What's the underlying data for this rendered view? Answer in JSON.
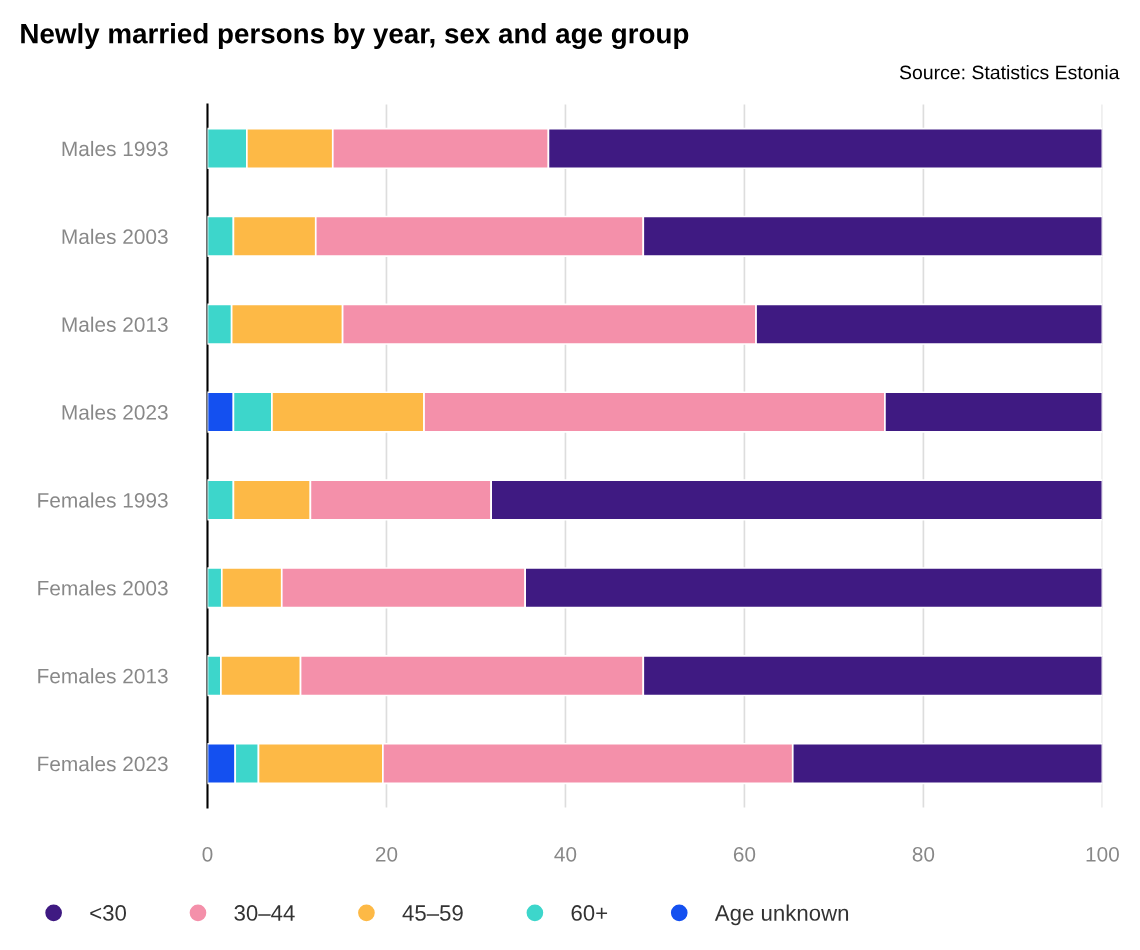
{
  "chart_data": {
    "type": "bar",
    "orientation": "horizontal",
    "stacked": true,
    "title": "Newly married persons by year, sex and age group",
    "annotations": [
      "Source: Statistics Estonia"
    ],
    "categories": [
      "Males 1993",
      "Males 2003",
      "Males 2013",
      "Males 2023",
      "Females 1993",
      "Females 2003",
      "Females 2013",
      "Females 2023"
    ],
    "series": [
      {
        "name": "Age unknown",
        "color": "#1450f0",
        "values": [
          null,
          null,
          null,
          2.9,
          null,
          null,
          null,
          3.1
        ]
      },
      {
        "name": "60+",
        "color": "#3dd6cb",
        "values": [
          4.4,
          2.9,
          2.7,
          4.3,
          2.9,
          1.6,
          1.5,
          2.6
        ]
      },
      {
        "name": "45–59",
        "color": "#fdb946",
        "values": [
          9.6,
          9.2,
          12.4,
          17.0,
          8.6,
          6.7,
          8.9,
          13.9
        ]
      },
      {
        "name": "30–44",
        "color": "#f490aa",
        "values": [
          24.1,
          36.6,
          46.2,
          51.5,
          20.2,
          27.2,
          38.3,
          45.8
        ]
      },
      {
        "name": "<30",
        "color": "#3f1a82",
        "values": [
          61.9,
          51.3,
          38.7,
          24.3,
          68.3,
          64.5,
          51.3,
          34.6
        ]
      }
    ],
    "xlim": [
      0,
      100
    ],
    "xticks": [
      0,
      20,
      40,
      60,
      80,
      100
    ],
    "grid": "x",
    "legend": "bottom"
  }
}
